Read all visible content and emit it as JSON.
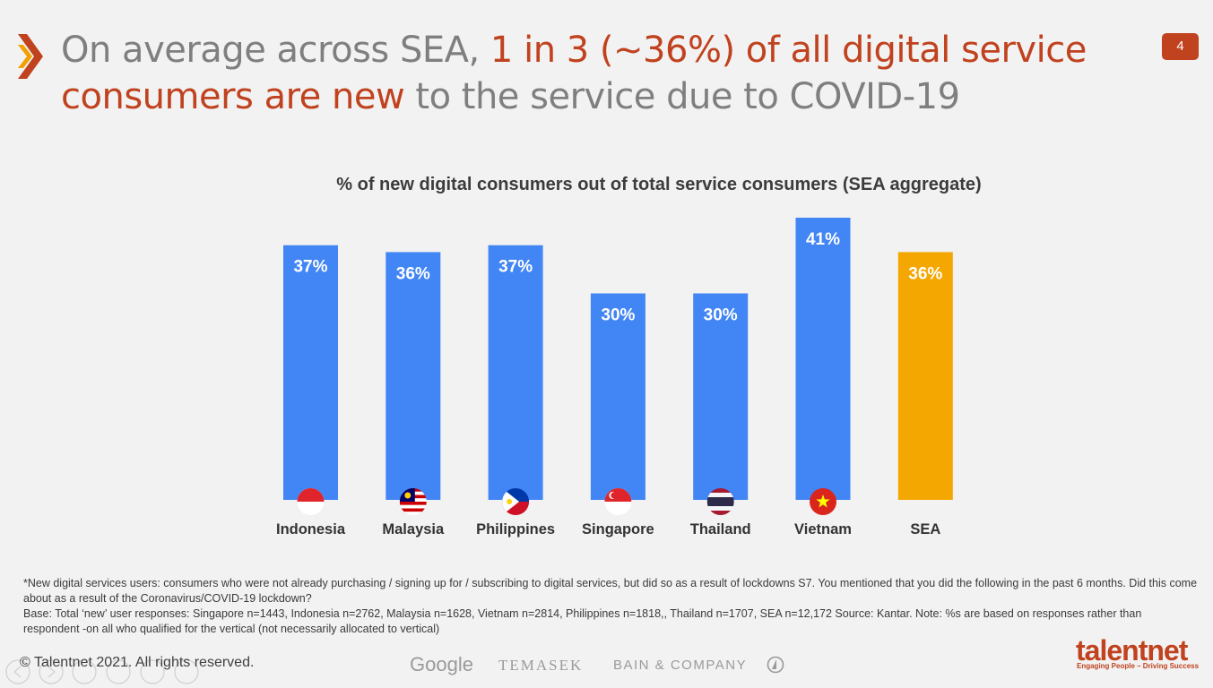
{
  "header": {
    "title_part1": "On average across SEA, ",
    "title_highlight1": "1 in 3 (~36%) of  all digital service",
    "title_highlight2": "consumers are new",
    "title_part2": "  to the service due to COVID-19",
    "page_number": "4"
  },
  "chart_data": {
    "type": "bar",
    "title": "% of new digital consumers out of total service consumers (SEA aggregate)",
    "categories": [
      "Indonesia",
      "Malaysia",
      "Philippines",
      "Singapore",
      "Thailand",
      "Vietnam",
      "SEA"
    ],
    "values": [
      37,
      36,
      37,
      30,
      30,
      41,
      36
    ],
    "data_labels": [
      "37%",
      "36%",
      "37%",
      "30%",
      "30%",
      "41%",
      "36%"
    ],
    "colors": [
      "#4285f4",
      "#4285f4",
      "#4285f4",
      "#4285f4",
      "#4285f4",
      "#4285f4",
      "#f4a700"
    ],
    "flags": [
      "indonesia-flag",
      "malaysia-flag",
      "philippines-flag",
      "singapore-flag",
      "thailand-flag",
      "vietnam-flag",
      ""
    ],
    "ylim": [
      0,
      41
    ],
    "xlabel": "",
    "ylabel": "",
    "grid": false
  },
  "footnote": {
    "line1": "*New digital services users: consumers who were not already purchasing / signing up for / subscribing to digital services, but did so as a result of lockdowns  S7. You mentioned that you did the following in the past 6 months. Did this come about as a result of the Coronavirus/COVID-19 lockdown?",
    "line2": "Base: Total ‘new’ user responses: Singapore n=1443, Indonesia n=2762, Malaysia n=1628, Vietnam n=2814, Philippines n=1818,, Thailand n=1707, SEA n=12,172  Source: Kantar. Note: %s are based on responses rather than respondent -on all who qualified for the vertical (not necessarily allocated to vertical)"
  },
  "footer": {
    "copyright": "© Talentnet 2021. All rights reserved.",
    "logo_google": "Google",
    "logo_temasek": "TEMASEK",
    "logo_bain": "BAIN & COMPANY",
    "brand": "talentnet",
    "tagline": "Engaging People – Driving Success"
  }
}
